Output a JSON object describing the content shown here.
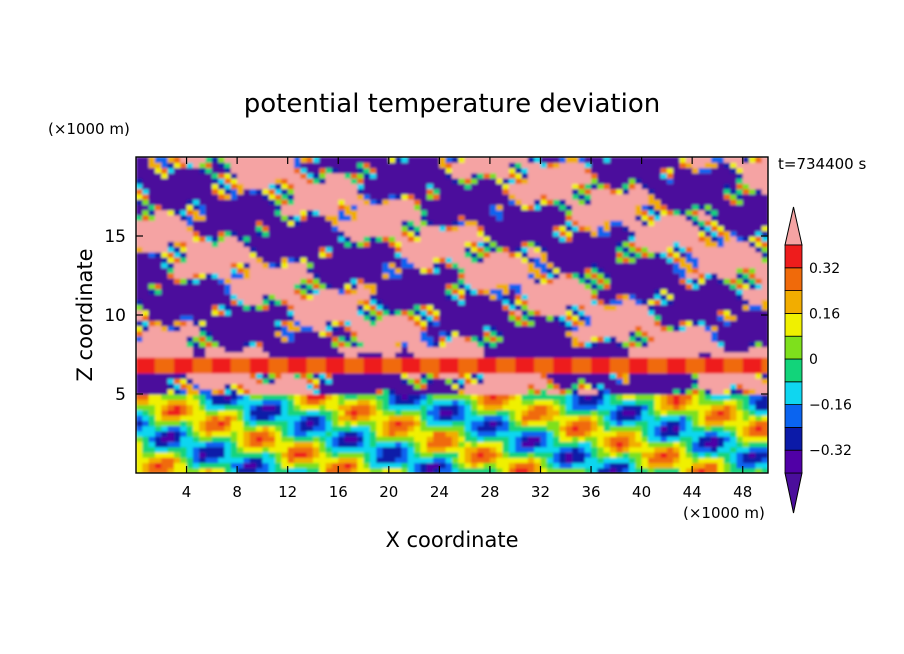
{
  "chart_data": {
    "type": "heatmap",
    "title": "potential temperature deviation",
    "xlabel": "X coordinate",
    "ylabel": "Z coordinate",
    "x_unit": "(×1000 m)",
    "y_unit": "(×1000 m)",
    "time_label": "t=734400 s",
    "xlim": [
      0,
      50
    ],
    "ylim": [
      0,
      20
    ],
    "x_ticks": [
      4,
      8,
      12,
      16,
      20,
      24,
      28,
      32,
      36,
      40,
      44,
      48
    ],
    "y_ticks": [
      5,
      10,
      15
    ],
    "colorbar": {
      "levels": [
        -0.4,
        -0.32,
        -0.24,
        -0.16,
        -0.08,
        0,
        0.08,
        0.16,
        0.24,
        0.32,
        0.4
      ],
      "tick_labels": [
        {
          "value": 0.32,
          "text": "0.32"
        },
        {
          "value": 0.16,
          "text": "0.16"
        },
        {
          "value": 0,
          "text": "0"
        },
        {
          "value": -0.16,
          "text": "−0.16"
        },
        {
          "value": -0.32,
          "text": "−0.32"
        }
      ],
      "colors": [
        "#4b0e9c",
        "#5000a6",
        "#0b1aa8",
        "#0a64f0",
        "#0fd6f0",
        "#12d47a",
        "#7ee01c",
        "#f0f000",
        "#f2ad00",
        "#f06a0a",
        "#ee1c1c",
        "#f5a3a3"
      ],
      "extend": "both"
    },
    "field_bands": [
      {
        "z_range": [
          15,
          20
        ],
        "pattern": "mixed",
        "dominant": [
          "#5000a6",
          "#f5a3a3"
        ]
      },
      {
        "z_range": [
          10,
          15
        ],
        "pattern": "mixed-filaments",
        "dominant": [
          "#5000a6",
          "#f5a3a3"
        ]
      },
      {
        "z_range": [
          8,
          10
        ],
        "pattern": "mixed",
        "dominant": [
          "#5000a6",
          "#f5a3a3"
        ]
      },
      {
        "z_range": [
          6.3,
          7.2
        ],
        "pattern": "layer",
        "dominant": [
          "#f06a0a",
          "#ee1c1c"
        ]
      },
      {
        "z_range": [
          5,
          6.3
        ],
        "pattern": "mixed",
        "dominant": [
          "#5000a6",
          "#f5a3a3"
        ]
      },
      {
        "z_range": [
          0,
          5
        ],
        "pattern": "convective",
        "dominant": [
          "#0fd6f0",
          "#7ee01c",
          "#f0f000",
          "#0a64f0"
        ]
      }
    ]
  }
}
